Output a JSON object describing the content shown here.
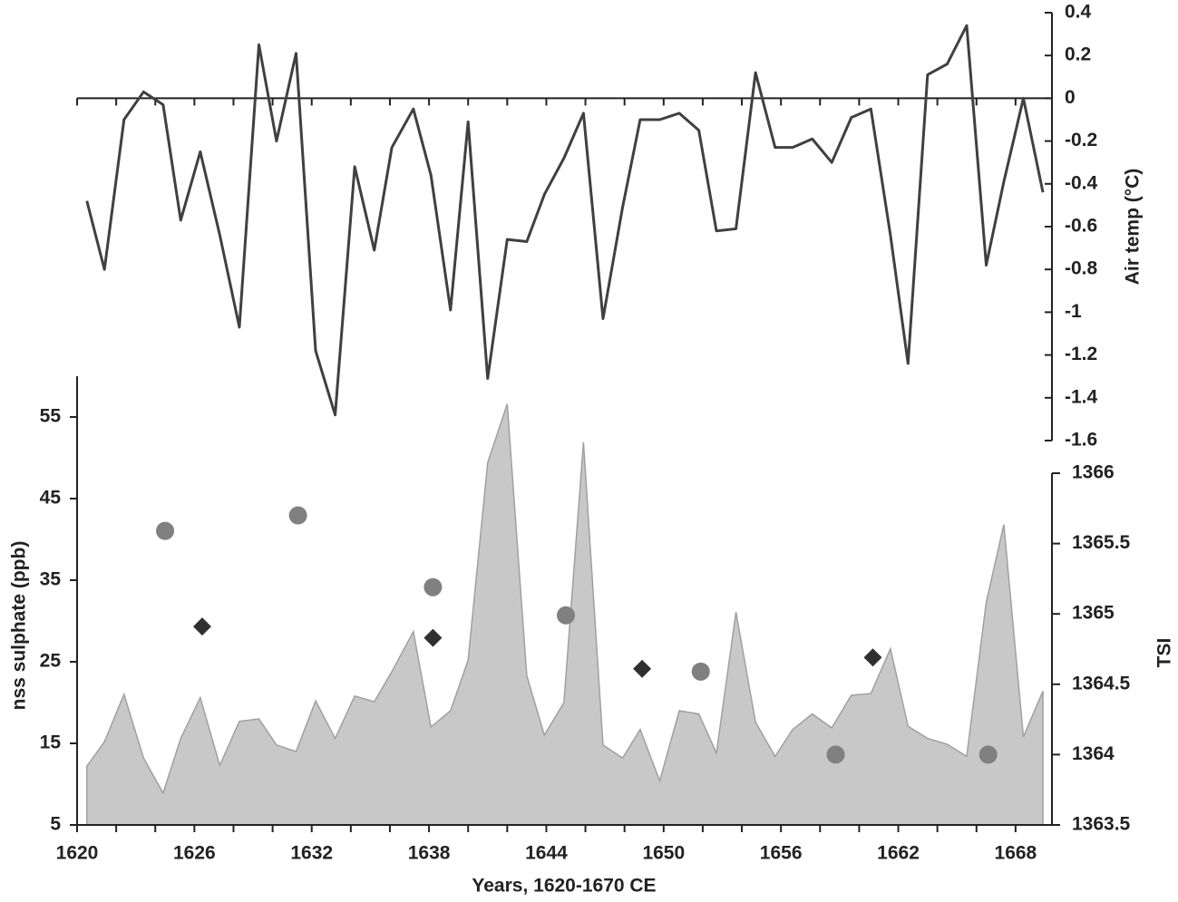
{
  "chart_data": [
    {
      "type": "line",
      "color": "#404040",
      "ylabel": "Air temp (°C)",
      "xlim": [
        1620,
        1670
      ],
      "ylim": [
        -1.6,
        0.4
      ],
      "yticks": [
        0.4,
        0.2,
        0,
        -0.2,
        -0.4,
        -0.6,
        -0.8,
        -1,
        -1.2,
        -1.4,
        -1.6
      ],
      "x": [
        1620.5,
        1621.4,
        1622.4,
        1623.4,
        1624.4,
        1625.3,
        1626.3,
        1627.3,
        1628.3,
        1629.3,
        1630.2,
        1631.2,
        1632.2,
        1633.2,
        1634.2,
        1635.2,
        1636.1,
        1637.2,
        1638.1,
        1639.1,
        1640.0,
        1641.0,
        1642.0,
        1643.0,
        1643.9,
        1644.9,
        1645.9,
        1646.9,
        1647.9,
        1648.8,
        1649.8,
        1650.8,
        1651.8,
        1652.7,
        1653.7,
        1654.7,
        1655.7,
        1656.6,
        1657.6,
        1658.6,
        1659.6,
        1660.6,
        1661.6,
        1662.5,
        1663.5,
        1664.5,
        1665.5,
        1666.5,
        1667.4,
        1668.4,
        1669.4
      ],
      "values": [
        -0.48,
        -0.8,
        -0.1,
        0.03,
        -0.03,
        -0.57,
        -0.25,
        -0.64,
        -1.07,
        0.25,
        -0.2,
        0.21,
        -1.18,
        -1.48,
        -0.32,
        -0.71,
        -0.23,
        -0.05,
        -0.36,
        -0.99,
        -0.11,
        -1.31,
        -0.66,
        -0.67,
        -0.45,
        -0.28,
        -0.07,
        -1.03,
        -0.51,
        -0.1,
        -0.1,
        -0.07,
        -0.15,
        -0.62,
        -0.61,
        0.12,
        -0.23,
        -0.23,
        -0.19,
        -0.3,
        -0.09,
        -0.05,
        -0.64,
        -1.24,
        0.11,
        0.16,
        0.34,
        -0.78,
        -0.39,
        0,
        -0.44
      ]
    },
    {
      "type": "area",
      "color": "#c8c8c8",
      "line_color": "#a0a0a0",
      "ylabel": "nss sulphate (ppb)",
      "xlabel": "Years, 1620-1670 CE",
      "xlim": [
        1620,
        1670
      ],
      "ylim": [
        5,
        60
      ],
      "xticks": [
        1620,
        1626,
        1632,
        1638,
        1644,
        1650,
        1656,
        1662,
        1668
      ],
      "xminorticks": [
        1620,
        1622,
        1624,
        1626,
        1628,
        1630,
        1632,
        1634,
        1636,
        1638,
        1640,
        1642,
        1644,
        1646,
        1648,
        1650,
        1652,
        1654,
        1656,
        1658,
        1660,
        1662,
        1664,
        1666,
        1668,
        1670
      ],
      "yticks": [
        55,
        45,
        35,
        25,
        15,
        5
      ],
      "x": [
        1620.5,
        1621.4,
        1622.4,
        1623.4,
        1624.4,
        1625.3,
        1626.3,
        1627.3,
        1628.3,
        1629.3,
        1630.2,
        1631.2,
        1632.2,
        1633.2,
        1634.2,
        1635.2,
        1636.1,
        1637.2,
        1638.1,
        1639.1,
        1640.0,
        1641.0,
        1642.0,
        1643.0,
        1643.9,
        1644.9,
        1645.9,
        1646.9,
        1647.9,
        1648.8,
        1649.8,
        1650.8,
        1651.8,
        1652.7,
        1653.7,
        1654.7,
        1655.7,
        1656.6,
        1657.6,
        1658.6,
        1659.6,
        1660.6,
        1661.6,
        1662.5,
        1663.5,
        1664.5,
        1665.5,
        1666.5,
        1667.4,
        1668.4,
        1669.4
      ],
      "values": [
        12.2,
        15.2,
        21.0,
        13.2,
        8.9,
        15.6,
        20.6,
        12.3,
        17.7,
        18.0,
        14.8,
        14.0,
        20.2,
        15.6,
        20.8,
        20.1,
        23.8,
        28.7,
        17.0,
        19.0,
        25.2,
        49.4,
        56.6,
        23.3,
        16.0,
        20.0,
        51.9,
        14.8,
        13.2,
        16.7,
        10.4,
        19.0,
        18.6,
        13.8,
        31.1,
        17.6,
        13.4,
        16.7,
        18.6,
        16.9,
        20.9,
        21.1,
        26.6,
        17.1,
        15.6,
        14.9,
        13.4,
        32.3,
        41.8,
        15.8,
        21.4
      ]
    },
    {
      "type": "scatter",
      "ylabel": "TSI",
      "xlim": [
        1620,
        1670
      ],
      "ylim": [
        1363.5,
        1366
      ],
      "yticks": [
        1366,
        1365.5,
        1365,
        1364.5,
        1364,
        1363.5
      ],
      "series": [
        {
          "color": "#808080",
          "marker": "circle",
          "x": [
            1624.5,
            1631.3,
            1638.2,
            1645.0,
            1651.9,
            1658.8,
            1666.6
          ],
          "values": [
            1365.59,
            1365.7,
            1365.19,
            1364.99,
            1364.59,
            1364.0,
            1364.0
          ]
        },
        {
          "color": "#303030",
          "marker": "diamond",
          "x": [
            1626.4,
            1638.2,
            1648.9,
            1660.7
          ],
          "values": [
            1364.91,
            1364.83,
            1364.61,
            1364.69
          ]
        }
      ]
    }
  ]
}
